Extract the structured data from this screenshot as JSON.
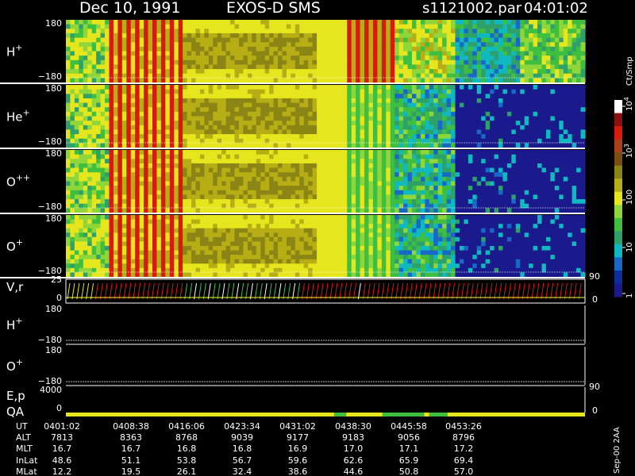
{
  "header": {
    "date": "Dec 10, 1991",
    "instrument": "EXOS-D SMS",
    "file": "s1121002.par",
    "start_time": "04:01:02"
  },
  "chart_data": {
    "type": "heatmap",
    "title": "Dec 10, 1991   EXOS-D SMS",
    "colorbar": {
      "label": "Ct/Smp",
      "log_scale": true,
      "ticks": [
        "1",
        "10",
        "100",
        "10^3",
        "10^4"
      ],
      "colors": [
        "#1a1a8c",
        "#0b2e9c",
        "#1868c8",
        "#10b8c0",
        "#2ea06a",
        "#3fbf3f",
        "#8fd63a",
        "#e6e61e",
        "#b6ae14",
        "#8b8516",
        "#7a4e12",
        "#a8401b",
        "#d81a0d",
        "#8b1010",
        "#ffffff"
      ]
    },
    "panels": [
      {
        "label": "H",
        "sup": "+",
        "ymax": "180",
        "ymin": "−180"
      },
      {
        "label": "He",
        "sup": "+",
        "ymax": "180",
        "ymin": "−180"
      },
      {
        "label": "O",
        "sup": "++",
        "ymax": "180",
        "ymin": "−180"
      },
      {
        "label": "O",
        "sup": "+",
        "ymax": "180",
        "ymin": "−180"
      }
    ],
    "vr_panel": {
      "label": "V,r",
      "ymax": "25",
      "ymin": "0",
      "right_max": "90",
      "right_min": "0"
    },
    "line_panels": [
      {
        "label": "H",
        "sup": "+",
        "ymax": "180",
        "ymin": "−180"
      },
      {
        "label": "O",
        "sup": "+",
        "ymax": "180",
        "ymin": "−180"
      }
    ],
    "ep_panel": {
      "label": "E,p",
      "ymax": "4000",
      "ymin": "0",
      "right_max": "90"
    },
    "qa_panel": {
      "label": "QA",
      "ymin": "0",
      "right_min": "0"
    },
    "time_axis": {
      "rows": [
        {
          "label": "UT",
          "values": [
            "0401:02",
            "0408:38",
            "0416:06",
            "0423:34",
            "0431:02",
            "0438:30",
            "0445:58",
            "0453:26"
          ]
        },
        {
          "label": "ALT",
          "values": [
            "7813",
            "8363",
            "8768",
            "9039",
            "9177",
            "9183",
            "9056",
            "8796"
          ]
        },
        {
          "label": "MLT",
          "values": [
            "16.7",
            "16.7",
            "16.8",
            "16.8",
            "16.9",
            "17.0",
            "17.1",
            "17.2"
          ]
        },
        {
          "label": "InLat",
          "values": [
            "48.6",
            "51.1",
            "53.8",
            "56.7",
            "59.6",
            "62.6",
            "65.9",
            "69.4"
          ]
        },
        {
          "label": "MLat",
          "values": [
            "12.2",
            "19.5",
            "26.1",
            "32.4",
            "38.6",
            "44.6",
            "50.8",
            "57.0"
          ]
        }
      ]
    },
    "footer_note": "Sep-00 2AA"
  }
}
